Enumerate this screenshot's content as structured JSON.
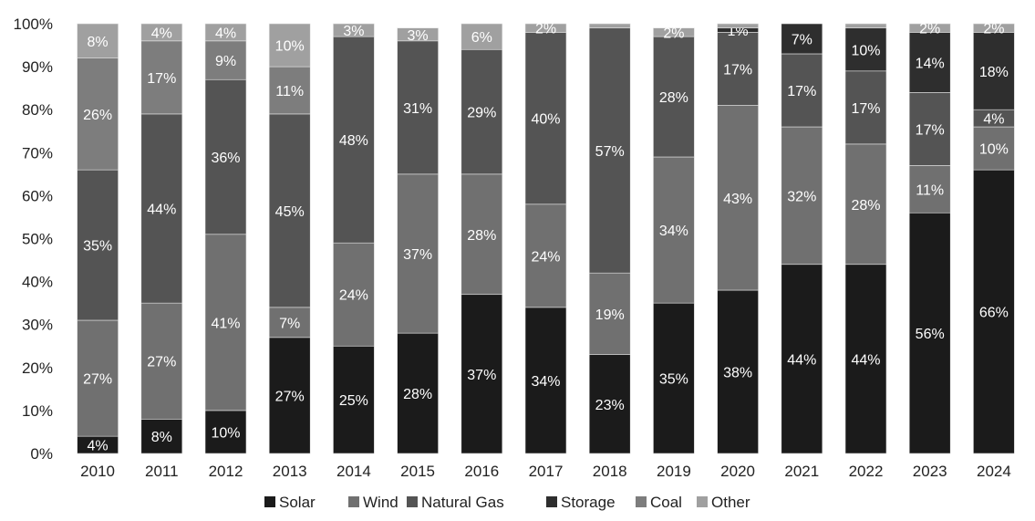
{
  "chart_data": {
    "type": "bar",
    "stacked": true,
    "percent_stacked": true,
    "categories": [
      "2010",
      "2011",
      "2012",
      "2013",
      "2014",
      "2015",
      "2016",
      "2017",
      "2018",
      "2019",
      "2020",
      "2021",
      "2022",
      "2023",
      "2024"
    ],
    "series": [
      {
        "name": "Solar",
        "color": "#1b1b1b",
        "values": [
          4,
          8,
          10,
          27,
          25,
          28,
          37,
          34,
          23,
          35,
          38,
          44,
          44,
          56,
          66
        ]
      },
      {
        "name": "Wind",
        "color": "#707070",
        "values": [
          27,
          27,
          41,
          7,
          24,
          37,
          28,
          24,
          19,
          34,
          43,
          32,
          28,
          11,
          10
        ]
      },
      {
        "name": "Natural Gas",
        "color": "#545454",
        "values": [
          35,
          44,
          36,
          45,
          48,
          31,
          29,
          40,
          57,
          28,
          17,
          17,
          17,
          17,
          4
        ]
      },
      {
        "name": "Storage",
        "color": "#2e2e2e",
        "values": [
          0,
          0,
          0,
          0,
          0,
          0,
          0,
          0,
          0,
          0,
          1,
          7,
          10,
          14,
          18
        ]
      },
      {
        "name": "Coal",
        "color": "#7d7d7d",
        "values": [
          26,
          17,
          9,
          11,
          0,
          0,
          0,
          0,
          0,
          0,
          0,
          0,
          0,
          0,
          0
        ]
      },
      {
        "name": "Other",
        "color": "#a0a0a0",
        "values": [
          8,
          4,
          4,
          10,
          3,
          3,
          6,
          2,
          1,
          2,
          1,
          0,
          1,
          2,
          2
        ]
      }
    ],
    "labels": [
      [
        4,
        27,
        35,
        null,
        26,
        8
      ],
      [
        8,
        27,
        44,
        null,
        17,
        4
      ],
      [
        10,
        41,
        36,
        null,
        9,
        4
      ],
      [
        27,
        7,
        45,
        null,
        11,
        10
      ],
      [
        25,
        24,
        48,
        null,
        null,
        3
      ],
      [
        28,
        37,
        31,
        null,
        null,
        3
      ],
      [
        37,
        28,
        29,
        null,
        null,
        6
      ],
      [
        34,
        24,
        40,
        null,
        null,
        2
      ],
      [
        23,
        19,
        57,
        null,
        null,
        null
      ],
      [
        35,
        34,
        28,
        null,
        null,
        2
      ],
      [
        38,
        43,
        17,
        1,
        null,
        null
      ],
      [
        44,
        32,
        17,
        7,
        null,
        null
      ],
      [
        44,
        28,
        17,
        10,
        null,
        null
      ],
      [
        56,
        11,
        17,
        14,
        null,
        2
      ],
      [
        66,
        10,
        4,
        18,
        null,
        2
      ]
    ],
    "label_suffix": "%",
    "yticks": [
      "0%",
      "10%",
      "20%",
      "30%",
      "40%",
      "50%",
      "60%",
      "70%",
      "80%",
      "90%",
      "100%"
    ],
    "ylim": [
      0,
      100
    ],
    "title": "",
    "xlabel": "",
    "ylabel": "",
    "grid": false,
    "legend_position": "bottom"
  }
}
